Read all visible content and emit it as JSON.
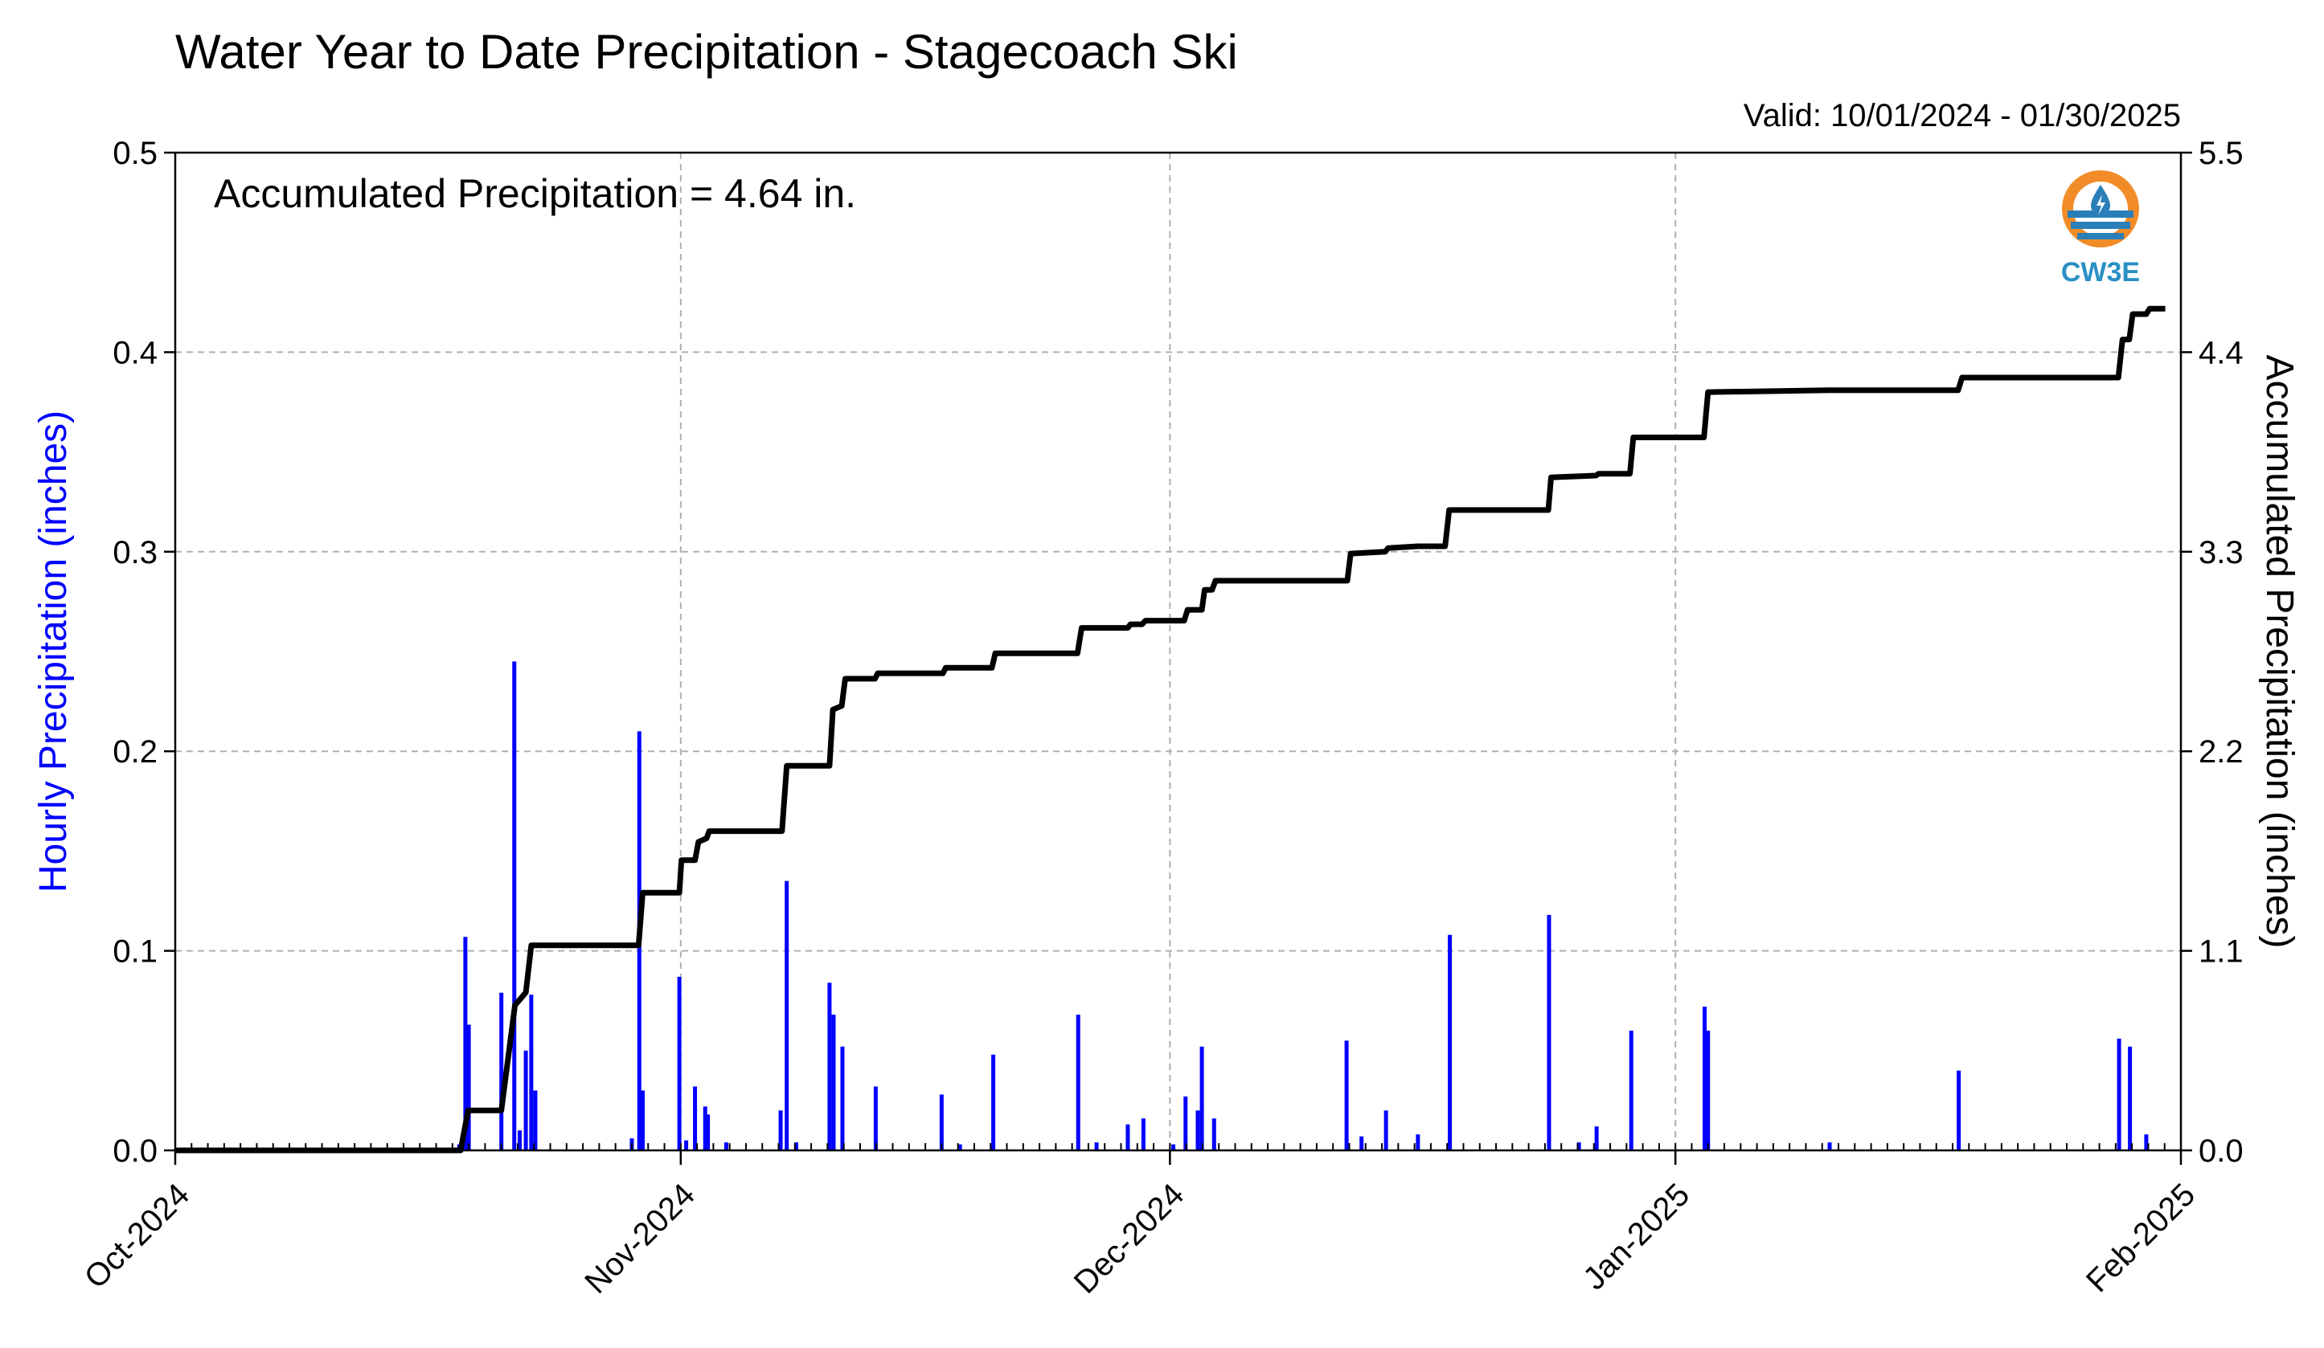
{
  "chart_data": {
    "type": "bar+line",
    "title": "Water Year to Date Precipitation - Stagecoach Ski",
    "subtitle": "Valid: 10/01/2024 - 01/30/2025",
    "annotation": "Accumulated Precipitation = 4.64 in.",
    "logo_text": "CW3E",
    "ylabel_left": "Hourly Precipitation (inches)",
    "ylabel_right": "Accumulated Precipitation (inches)",
    "ylim_left": [
      0,
      0.5
    ],
    "ylim_right": [
      0,
      5.5
    ],
    "yticks_left": [
      "0.0",
      "0.1",
      "0.2",
      "0.3",
      "0.4",
      "0.5"
    ],
    "yticks_right": [
      "0.0",
      "1.1",
      "2.2",
      "3.3",
      "4.4",
      "5.5"
    ],
    "xlim": [
      "2024-10-01",
      "2025-02-01"
    ],
    "xticks": [
      {
        "date": "2024-10-01",
        "label": "Oct-2024"
      },
      {
        "date": "2024-11-01",
        "label": "Nov-2024"
      },
      {
        "date": "2024-12-01",
        "label": "Dec-2024"
      },
      {
        "date": "2025-01-01",
        "label": "Jan-2025"
      },
      {
        "date": "2025-02-01",
        "label": "Feb-2025"
      }
    ],
    "grid": true,
    "colors": {
      "hourly": "#0000ff",
      "accumulated": "#000000",
      "grid": "#b0b0b0"
    },
    "hourly_series": {
      "name": "Hourly Precipitation",
      "points": [
        [
          "2024-10-18T10:00",
          0.003
        ],
        [
          "2024-10-18T19:00",
          0.107
        ],
        [
          "2024-10-19T00:00",
          0.063
        ],
        [
          "2024-10-21T00:00",
          0.079
        ],
        [
          "2024-10-21T19:00",
          0.245
        ],
        [
          "2024-10-22T03:00",
          0.01
        ],
        [
          "2024-10-22T12:00",
          0.05
        ],
        [
          "2024-10-22T20:00",
          0.078
        ],
        [
          "2024-10-23T02:00",
          0.03
        ],
        [
          "2024-10-29T00:00",
          0.006
        ],
        [
          "2024-10-29T11:00",
          0.21
        ],
        [
          "2024-10-29T16:00",
          0.03
        ],
        [
          "2024-10-31T22:00",
          0.087
        ],
        [
          "2024-11-01T08:00",
          0.005
        ],
        [
          "2024-11-01T21:00",
          0.032
        ],
        [
          "2024-11-02T12:00",
          0.022
        ],
        [
          "2024-11-02T16:00",
          0.018
        ],
        [
          "2024-11-03T19:00",
          0.004
        ],
        [
          "2024-11-07T03:00",
          0.02
        ],
        [
          "2024-11-07T12:00",
          0.135
        ],
        [
          "2024-11-08T02:00",
          0.004
        ],
        [
          "2024-11-10T03:00",
          0.084
        ],
        [
          "2024-11-10T09:00",
          0.068
        ],
        [
          "2024-11-10T22:00",
          0.052
        ],
        [
          "2024-11-12T23:00",
          0.032
        ],
        [
          "2024-11-17T00:00",
          0.028
        ],
        [
          "2024-11-18T03:00",
          0.003
        ],
        [
          "2024-11-20T04:00",
          0.048
        ],
        [
          "2024-11-25T09:00",
          0.068
        ],
        [
          "2024-11-26T12:00",
          0.004
        ],
        [
          "2024-11-28T10:00",
          0.013
        ],
        [
          "2024-11-29T09:00",
          0.016
        ],
        [
          "2024-12-01T05:00",
          0.003
        ],
        [
          "2024-12-01T23:00",
          0.027
        ],
        [
          "2024-12-02T17:00",
          0.02
        ],
        [
          "2024-12-02T23:00",
          0.052
        ],
        [
          "2024-12-03T17:00",
          0.016
        ],
        [
          "2024-12-11T20:00",
          0.055
        ],
        [
          "2024-12-12T18:00",
          0.007
        ],
        [
          "2024-12-14T06:00",
          0.02
        ],
        [
          "2024-12-16T05:00",
          0.008
        ],
        [
          "2024-12-18T04:00",
          0.108
        ],
        [
          "2024-12-24T06:00",
          0.118
        ],
        [
          "2024-12-26T02:00",
          0.004
        ],
        [
          "2024-12-27T04:00",
          0.012
        ],
        [
          "2024-12-29T07:00",
          0.06
        ],
        [
          "2025-01-02T19:00",
          0.072
        ],
        [
          "2025-01-03T00:00",
          0.06
        ],
        [
          "2025-01-10T11:00",
          0.004
        ],
        [
          "2025-01-18T09:00",
          0.04
        ],
        [
          "2025-01-28T05:00",
          0.056
        ],
        [
          "2025-01-28T21:00",
          0.052
        ],
        [
          "2025-01-29T21:00",
          0.008
        ]
      ]
    },
    "accumulated_series": {
      "name": "Accumulated Precipitation",
      "points": [
        [
          "2024-10-01T00:00",
          0.0
        ],
        [
          "2024-10-18T12:00",
          0.0
        ],
        [
          "2024-10-18T23:00",
          0.22
        ],
        [
          "2024-10-21T00:00",
          0.22
        ],
        [
          "2024-10-21T02:00",
          0.28
        ],
        [
          "2024-10-21T20:00",
          0.8
        ],
        [
          "2024-10-22T12:00",
          0.87
        ],
        [
          "2024-10-22T20:00",
          1.13
        ],
        [
          "2024-10-29T10:00",
          1.13
        ],
        [
          "2024-10-29T16:00",
          1.42
        ],
        [
          "2024-10-31T22:00",
          1.42
        ],
        [
          "2024-11-01T01:00",
          1.6
        ],
        [
          "2024-11-01T21:00",
          1.6
        ],
        [
          "2024-11-02T02:00",
          1.7
        ],
        [
          "2024-11-02T14:00",
          1.72
        ],
        [
          "2024-11-02T18:00",
          1.76
        ],
        [
          "2024-11-07T05:00",
          1.76
        ],
        [
          "2024-11-07T12:00",
          2.12
        ],
        [
          "2024-11-10T03:00",
          2.12
        ],
        [
          "2024-11-10T08:00",
          2.43
        ],
        [
          "2024-11-10T21:00",
          2.45
        ],
        [
          "2024-11-11T02:00",
          2.6
        ],
        [
          "2024-11-12T22:00",
          2.6
        ],
        [
          "2024-11-13T02:00",
          2.63
        ],
        [
          "2024-11-17T02:00",
          2.63
        ],
        [
          "2024-11-17T06:00",
          2.66
        ],
        [
          "2024-11-20T02:00",
          2.66
        ],
        [
          "2024-11-20T07:00",
          2.74
        ],
        [
          "2024-11-25T08:00",
          2.74
        ],
        [
          "2024-11-25T14:00",
          2.88
        ],
        [
          "2024-11-28T10:00",
          2.88
        ],
        [
          "2024-11-28T14:00",
          2.9
        ],
        [
          "2024-11-29T07:00",
          2.9
        ],
        [
          "2024-11-29T12:00",
          2.92
        ],
        [
          "2024-12-01T21:00",
          2.92
        ],
        [
          "2024-12-02T02:00",
          2.98
        ],
        [
          "2024-12-02T23:00",
          2.98
        ],
        [
          "2024-12-03T03:00",
          3.09
        ],
        [
          "2024-12-03T14:00",
          3.09
        ],
        [
          "2024-12-03T19:00",
          3.14
        ],
        [
          "2024-12-11T21:00",
          3.14
        ],
        [
          "2024-12-12T02:00",
          3.29
        ],
        [
          "2024-12-14T05:00",
          3.3
        ],
        [
          "2024-12-14T09:00",
          3.32
        ],
        [
          "2024-12-16T05:00",
          3.33
        ],
        [
          "2024-12-17T21:00",
          3.33
        ],
        [
          "2024-12-18T03:00",
          3.53
        ],
        [
          "2024-12-24T05:00",
          3.53
        ],
        [
          "2024-12-24T09:00",
          3.71
        ],
        [
          "2024-12-27T03:00",
          3.72
        ],
        [
          "2024-12-27T07:00",
          3.73
        ],
        [
          "2024-12-29T05:00",
          3.73
        ],
        [
          "2024-12-29T10:00",
          3.93
        ],
        [
          "2025-01-02T18:00",
          3.93
        ],
        [
          "2025-01-03T00:00",
          4.18
        ],
        [
          "2025-01-10T10:00",
          4.19
        ],
        [
          "2025-01-18T08:00",
          4.19
        ],
        [
          "2025-01-18T14:00",
          4.26
        ],
        [
          "2025-01-28T04:00",
          4.26
        ],
        [
          "2025-01-28T10:00",
          4.47
        ],
        [
          "2025-01-28T20:00",
          4.47
        ],
        [
          "2025-01-29T01:00",
          4.61
        ],
        [
          "2025-01-29T21:00",
          4.61
        ],
        [
          "2025-01-30T02:00",
          4.64
        ],
        [
          "2025-01-31T01:00",
          4.64
        ]
      ]
    }
  }
}
